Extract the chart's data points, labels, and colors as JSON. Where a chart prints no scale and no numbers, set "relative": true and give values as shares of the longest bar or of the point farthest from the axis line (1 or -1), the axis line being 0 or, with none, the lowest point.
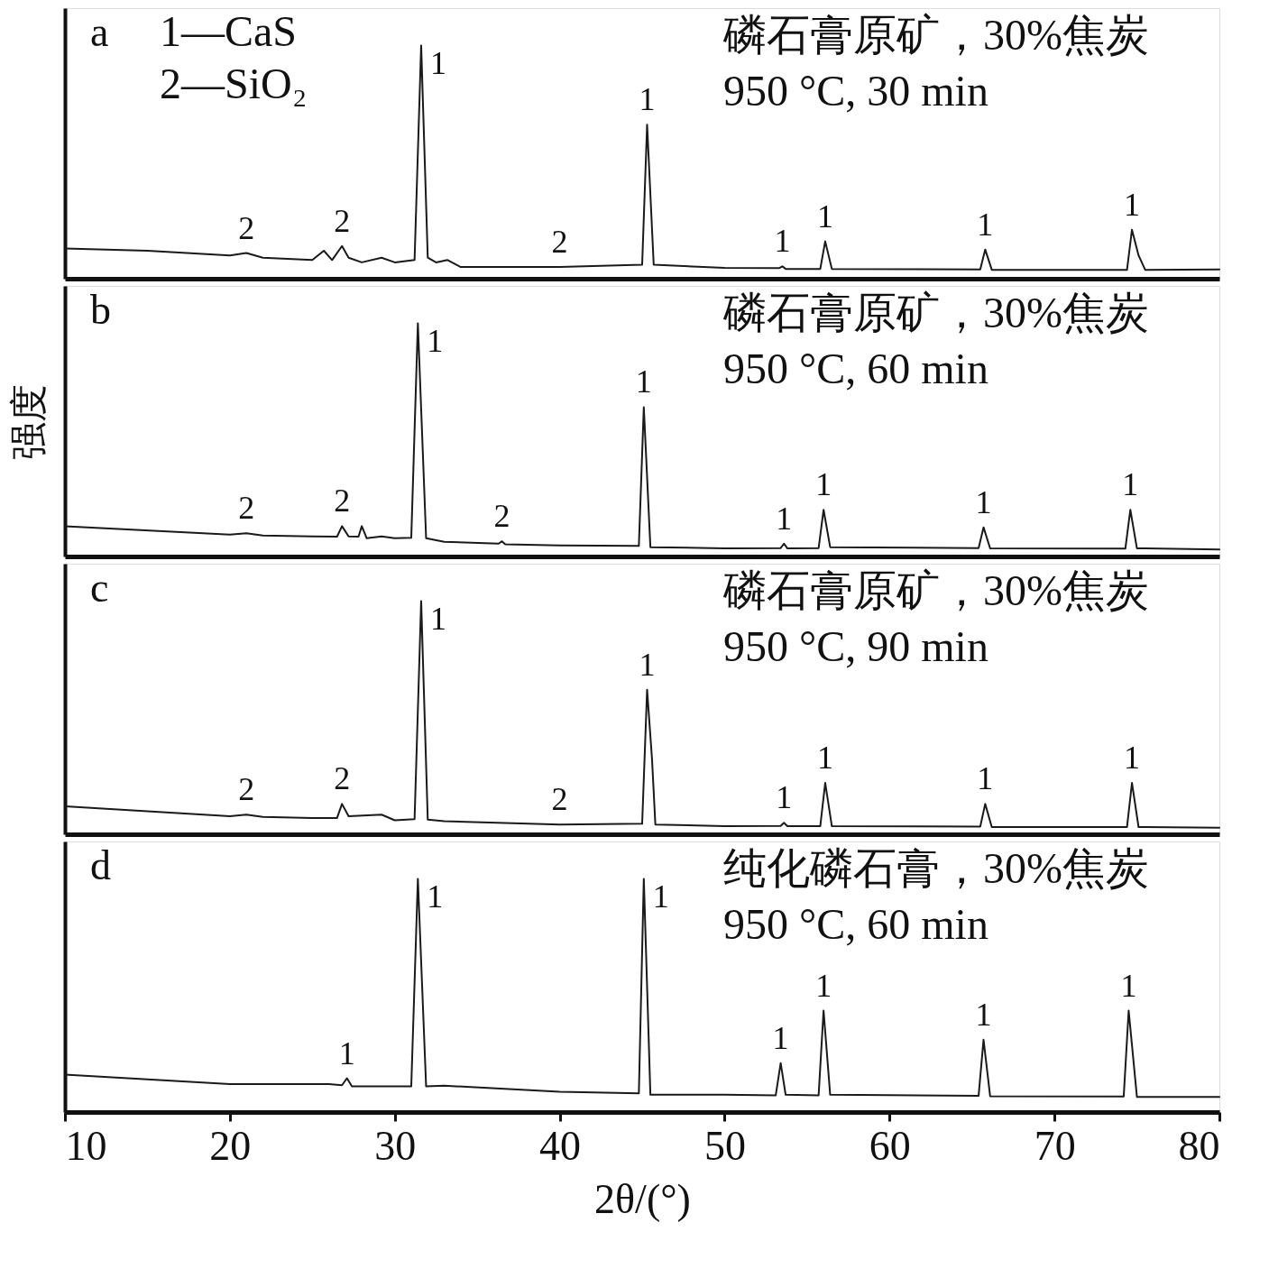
{
  "chart_data": [
    {
      "type": "line",
      "title": "a",
      "relative": true,
      "xlim": [
        10,
        80
      ],
      "tick_labels": false,
      "annotations": [
        "1—CaS",
        "2—SiO₂",
        "磷石膏原矿，30%焦炭",
        "950 °C, 30 min",
        {
          "text": "2",
          "x": 21,
          "y": 0.11
        },
        {
          "text": "2",
          "x": 26.8,
          "y": 0.14
        },
        {
          "text": "1",
          "x": 31.6,
          "y": 1.0
        },
        {
          "text": "2",
          "x": 40,
          "y": 0.05
        },
        {
          "text": "1",
          "x": 45.3,
          "y": 0.66
        },
        {
          "text": "1",
          "x": 53.5,
          "y": 0.053
        },
        {
          "text": "1",
          "x": 56.1,
          "y": 0.16
        },
        {
          "text": "1",
          "x": 65.8,
          "y": 0.125
        },
        {
          "text": "1",
          "x": 74.7,
          "y": 0.21
        }
      ],
      "series": [
        {
          "color": "#1a1a1a",
          "x": [
            10,
            15,
            20,
            21,
            22,
            25,
            25.7,
            26.2,
            26.8,
            27.2,
            28,
            29.2,
            30,
            31.2,
            31.6,
            32.0,
            32.5,
            33.2,
            34,
            40,
            45,
            45.3,
            45.7,
            50,
            53.3,
            53.5,
            53.7,
            55.8,
            56.1,
            56.5,
            65.5,
            65.8,
            66.2,
            74.4,
            74.7,
            75.1,
            75.5,
            80
          ],
          "values": [
            0.13,
            0.12,
            0.1,
            0.11,
            0.09,
            0.08,
            0.12,
            0.08,
            0.14,
            0.09,
            0.07,
            0.09,
            0.07,
            0.08,
            1.0,
            0.09,
            0.07,
            0.08,
            0.05,
            0.05,
            0.06,
            0.66,
            0.06,
            0.046,
            0.045,
            0.053,
            0.042,
            0.042,
            0.16,
            0.042,
            0.04,
            0.125,
            0.038,
            0.038,
            0.21,
            0.1,
            0.038,
            0.04
          ]
        }
      ]
    },
    {
      "type": "line",
      "title": "b",
      "ylabel": "强度",
      "relative": true,
      "xlim": [
        10,
        80
      ],
      "tick_labels": false,
      "annotations": [
        "磷石膏原矿，30%焦炭",
        "950 °C, 60 min",
        {
          "text": "2",
          "x": 21,
          "y": 0.1
        },
        {
          "text": "2",
          "x": 26.8,
          "y": 0.13
        },
        {
          "text": "1",
          "x": 31.4,
          "y": 1.0
        },
        {
          "text": "2",
          "x": 36.5,
          "y": 0.065
        },
        {
          "text": "1",
          "x": 45.1,
          "y": 0.64
        },
        {
          "text": "1",
          "x": 53.6,
          "y": 0.055
        },
        {
          "text": "1",
          "x": 56.0,
          "y": 0.2
        },
        {
          "text": "1",
          "x": 65.7,
          "y": 0.125
        },
        {
          "text": "1",
          "x": 74.6,
          "y": 0.2
        }
      ],
      "series": [
        {
          "color": "#1a1a1a",
          "x": [
            10,
            20,
            21,
            22,
            25,
            26.5,
            26.8,
            27.2,
            27.8,
            28,
            28.3,
            29.2,
            30,
            31.0,
            31.4,
            31.9,
            33,
            36.3,
            36.5,
            36.7,
            40,
            44.8,
            45.1,
            45.5,
            50,
            53.4,
            53.6,
            53.8,
            55.7,
            56.0,
            56.4,
            65.4,
            65.7,
            66.1,
            74.3,
            74.6,
            75.0,
            80
          ],
          "values": [
            0.13,
            0.094,
            0.1,
            0.09,
            0.086,
            0.085,
            0.13,
            0.086,
            0.085,
            0.13,
            0.078,
            0.086,
            0.078,
            0.08,
            1.0,
            0.078,
            0.063,
            0.055,
            0.065,
            0.052,
            0.047,
            0.045,
            0.64,
            0.04,
            0.035,
            0.036,
            0.055,
            0.035,
            0.036,
            0.2,
            0.04,
            0.036,
            0.125,
            0.035,
            0.034,
            0.2,
            0.035,
            0.03
          ]
        }
      ]
    },
    {
      "type": "line",
      "title": "c",
      "relative": true,
      "xlim": [
        10,
        80
      ],
      "tick_labels": false,
      "annotations": [
        "磷石膏原矿，30%焦炭",
        "950 °C, 90 min",
        {
          "text": "2",
          "x": 21,
          "y": 0.084
        },
        {
          "text": "2",
          "x": 26.8,
          "y": 0.13
        },
        {
          "text": "1",
          "x": 31.6,
          "y": 1.0
        },
        {
          "text": "2",
          "x": 40,
          "y": 0.042
        },
        {
          "text": "1",
          "x": 45.3,
          "y": 0.62
        },
        {
          "text": "1",
          "x": 53.6,
          "y": 0.049
        },
        {
          "text": "1",
          "x": 56.1,
          "y": 0.22
        },
        {
          "text": "1",
          "x": 65.8,
          "y": 0.13
        },
        {
          "text": "1",
          "x": 74.7,
          "y": 0.22
        }
      ],
      "series": [
        {
          "color": "#1a1a1a",
          "x": [
            10,
            20,
            21,
            22,
            25,
            26.5,
            26.8,
            27.2,
            29.2,
            30,
            31.2,
            31.6,
            32.0,
            33,
            40,
            45.0,
            45.3,
            45.6,
            45.8,
            50,
            53.4,
            53.6,
            53.8,
            55.8,
            56.1,
            56.5,
            65.5,
            65.8,
            66.2,
            74.4,
            74.7,
            75.1,
            80
          ],
          "values": [
            0.12,
            0.077,
            0.084,
            0.074,
            0.07,
            0.07,
            0.13,
            0.077,
            0.084,
            0.06,
            0.065,
            1.0,
            0.063,
            0.056,
            0.042,
            0.045,
            0.62,
            0.32,
            0.042,
            0.035,
            0.036,
            0.049,
            0.035,
            0.035,
            0.22,
            0.035,
            0.033,
            0.13,
            0.031,
            0.031,
            0.22,
            0.031,
            0.028
          ]
        }
      ]
    },
    {
      "type": "line",
      "title": "d",
      "xlabel": "2θ/(°)",
      "relative": true,
      "xlim": [
        10,
        80
      ],
      "xticks": [
        10,
        20,
        30,
        40,
        50,
        60,
        70,
        80
      ],
      "annotations": [
        "纯化磷石膏，30%焦炭",
        "950 °C, 60 min",
        {
          "text": "1",
          "x": 27.1,
          "y": 0.145
        },
        {
          "text": "1",
          "x": 31.4,
          "y": 1.0
        },
        {
          "text": "1",
          "x": 45.1,
          "y": 1.0
        },
        {
          "text": "1",
          "x": 53.4,
          "y": 0.21
        },
        {
          "text": "1",
          "x": 56.0,
          "y": 0.435
        },
        {
          "text": "1",
          "x": 65.7,
          "y": 0.31
        },
        {
          "text": "1",
          "x": 74.5,
          "y": 0.435
        }
      ],
      "series": [
        {
          "color": "#1a1a1a",
          "x": [
            10,
            20,
            26,
            26.8,
            27.1,
            27.4,
            30,
            31.0,
            31.4,
            31.9,
            33,
            40,
            44.8,
            45.1,
            45.5,
            50,
            53.1,
            53.4,
            53.7,
            55.7,
            56.0,
            56.4,
            65.4,
            65.7,
            66.1,
            74.2,
            74.5,
            75.0,
            80
          ],
          "values": [
            0.16,
            0.12,
            0.12,
            0.115,
            0.145,
            0.11,
            0.11,
            0.11,
            1.0,
            0.11,
            0.113,
            0.087,
            0.08,
            1.0,
            0.074,
            0.074,
            0.072,
            0.21,
            0.074,
            0.072,
            0.435,
            0.074,
            0.07,
            0.31,
            0.068,
            0.067,
            0.435,
            0.065,
            0.065
          ]
        }
      ]
    }
  ]
}
